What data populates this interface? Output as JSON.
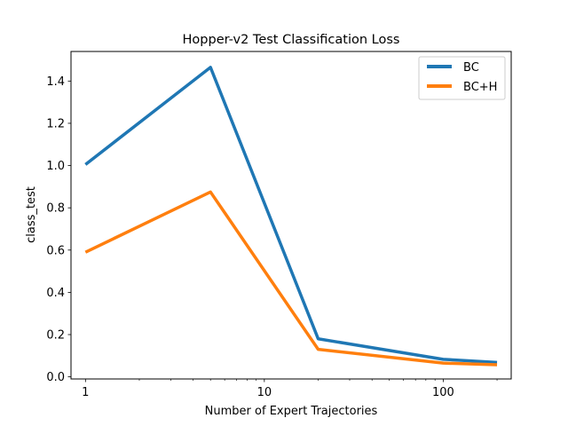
{
  "chart_data": {
    "type": "line",
    "title": "Hopper-v2 Test Classification Loss",
    "xlabel": "Number of Expert Trajectories",
    "ylabel": "class_test",
    "xscale": "log",
    "xlim": [
      0.83,
      240
    ],
    "ylim": [
      -0.01,
      1.54
    ],
    "xticks": [
      1,
      10,
      100
    ],
    "xtick_labels": [
      "1",
      "10",
      "100"
    ],
    "yticks": [
      0.0,
      0.2,
      0.4,
      0.6,
      0.8,
      1.0,
      1.2,
      1.4
    ],
    "ytick_labels": [
      "0.0",
      "0.2",
      "0.4",
      "0.6",
      "0.8",
      "1.0",
      "1.2",
      "1.4"
    ],
    "grid": false,
    "legend_position": "upper right",
    "x": [
      1,
      5,
      20,
      100,
      200
    ],
    "series": [
      {
        "name": "BC",
        "color": "#1f77b4",
        "values": [
          1.005,
          1.465,
          0.18,
          0.083,
          0.068
        ]
      },
      {
        "name": "BC+H",
        "color": "#ff7f0e",
        "values": [
          0.59,
          0.875,
          0.13,
          0.065,
          0.057
        ]
      }
    ]
  }
}
